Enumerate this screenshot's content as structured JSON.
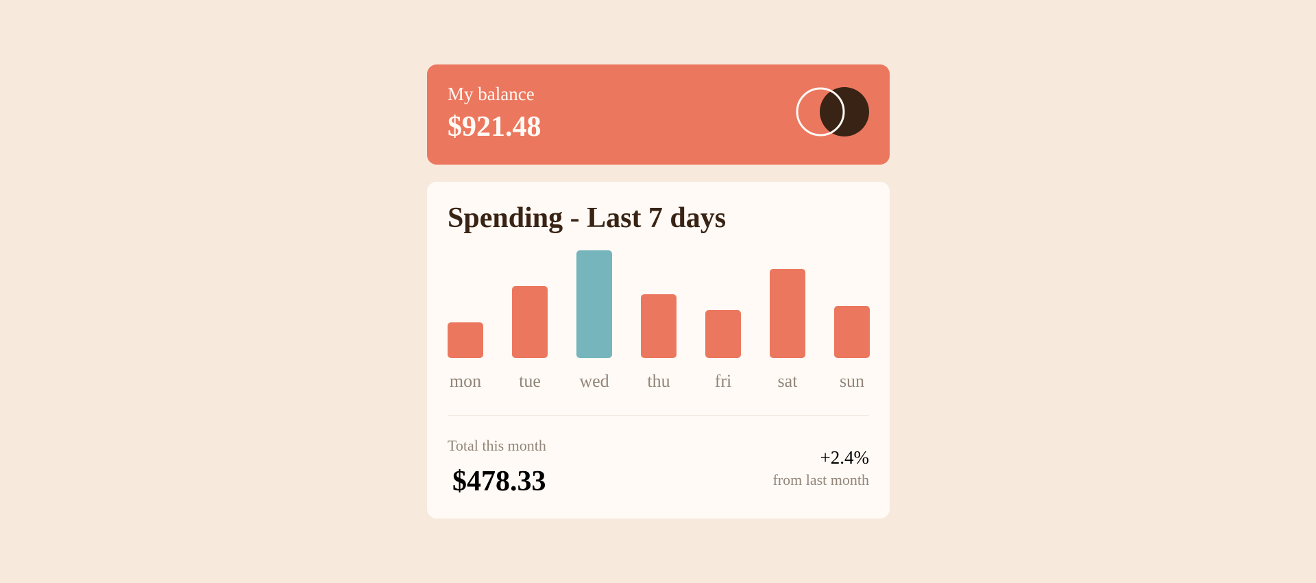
{
  "balance": {
    "label": "My balance",
    "amount": "$921.48",
    "logo_icon": "circles-logo-icon"
  },
  "spending": {
    "title": "Spending - Last 7 days"
  },
  "chart_data": {
    "type": "bar",
    "categories": [
      "mon",
      "tue",
      "wed",
      "thu",
      "fri",
      "sat",
      "sun"
    ],
    "values": [
      17.45,
      34.91,
      52.36,
      31.07,
      23.39,
      43.28,
      25.48
    ],
    "highlight_index": 2,
    "colors": {
      "bar": "#ec775f",
      "highlight": "#76b5bc"
    }
  },
  "summary": {
    "total_label": "Total this month",
    "total_amount": "$478.33",
    "change_pct": "+2.4%",
    "change_label": "from last month"
  },
  "colors": {
    "background": "#f8e9dd",
    "card": "#fffaf5",
    "accent": "#ec775f",
    "dark": "#382314",
    "muted": "#92857a"
  }
}
